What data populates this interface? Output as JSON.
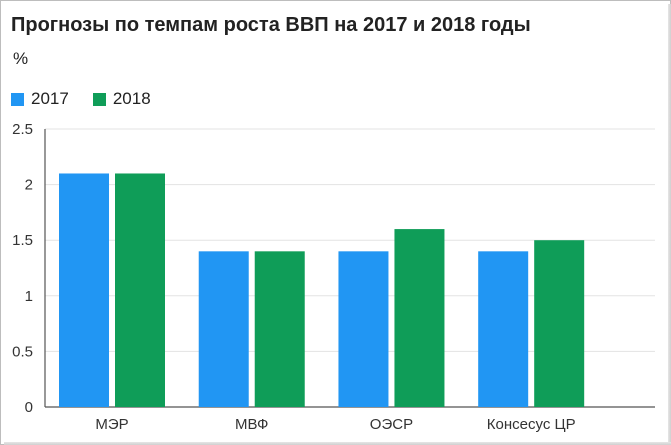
{
  "chart_data": {
    "type": "bar",
    "title": "Прогнозы по темпам роста ВВП на 2017 и 2018 годы",
    "unit": "%",
    "categories": [
      "МЭР",
      "МВФ",
      "ОЭСР",
      "Консесус ЦР"
    ],
    "series": [
      {
        "name": "2017",
        "color": "#2196f3",
        "values": [
          2.1,
          1.4,
          1.4,
          1.4
        ]
      },
      {
        "name": "2018",
        "color": "#0f9d58",
        "values": [
          2.1,
          1.4,
          1.6,
          1.5
        ]
      }
    ],
    "ylim": [
      0,
      2.5
    ],
    "yticks": [
      "0",
      "0.5",
      "1",
      "1.5",
      "2",
      "2.5"
    ],
    "grid": true,
    "legend_position": "top-left"
  }
}
